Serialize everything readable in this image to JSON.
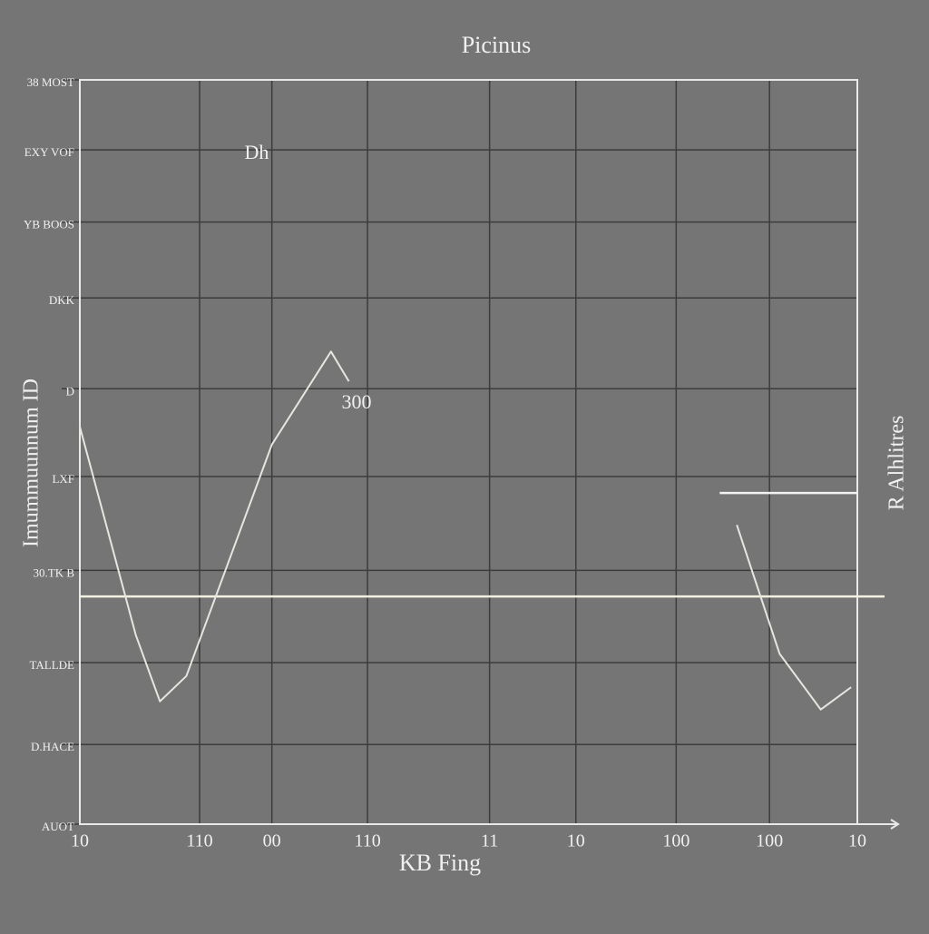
{
  "chart_data": {
    "type": "line",
    "title": "Picinus",
    "xlabel": "KB Fing",
    "ylabel": "Imummuunnum ID",
    "y2label": "R Alhlitres",
    "annotations": [
      "Dh",
      "300"
    ],
    "x": [
      0,
      7.2,
      10.3,
      13.7,
      24.7,
      32.3,
      34.6,
      60,
      84.5,
      90,
      95.3,
      99.2
    ],
    "series": [
      {
        "color": "#e6e6e0",
        "values": [
          53.4,
          25.4,
          16.5,
          19.9,
          51,
          63.5,
          59.5,
          null,
          40.2,
          22.9,
          15.4,
          18.4
        ]
      }
    ],
    "reference_lines": [
      {
        "value": 30.6,
        "color": "#f2f2dc"
      },
      {
        "value": 44.5,
        "color": "#f2f2f2"
      }
    ],
    "xlim": [
      0,
      100
    ],
    "xticks": [
      {
        "value": 0,
        "label": "10"
      },
      {
        "value": 15.4,
        "label": "110"
      },
      {
        "value": 24.7,
        "label": "00"
      },
      {
        "value": 37,
        "label": "110"
      },
      {
        "value": 52.7,
        "label": "11"
      },
      {
        "value": 63.8,
        "label": "10"
      },
      {
        "value": 76.7,
        "label": "100"
      },
      {
        "value": 88.7,
        "label": "100"
      },
      {
        "value": 100,
        "label": "10"
      }
    ],
    "ylim": [
      0,
      100
    ],
    "yticks": [
      {
        "value": 0,
        "label": "AUOT"
      },
      {
        "value": 10.7,
        "label": "D.HACE"
      },
      {
        "value": 21.7,
        "label": "TALLDE"
      },
      {
        "value": 34.1,
        "label": "30.TK B"
      },
      {
        "value": 46.7,
        "label": "LXF"
      },
      {
        "value": 58.5,
        "label": "D"
      },
      {
        "value": 70.7,
        "label": "DKK"
      },
      {
        "value": 80.9,
        "label": "YB BOOS"
      },
      {
        "value": 90.6,
        "label": "EXY VOF"
      },
      {
        "value": 100,
        "label": "38 MOST"
      }
    ],
    "grid": true
  }
}
